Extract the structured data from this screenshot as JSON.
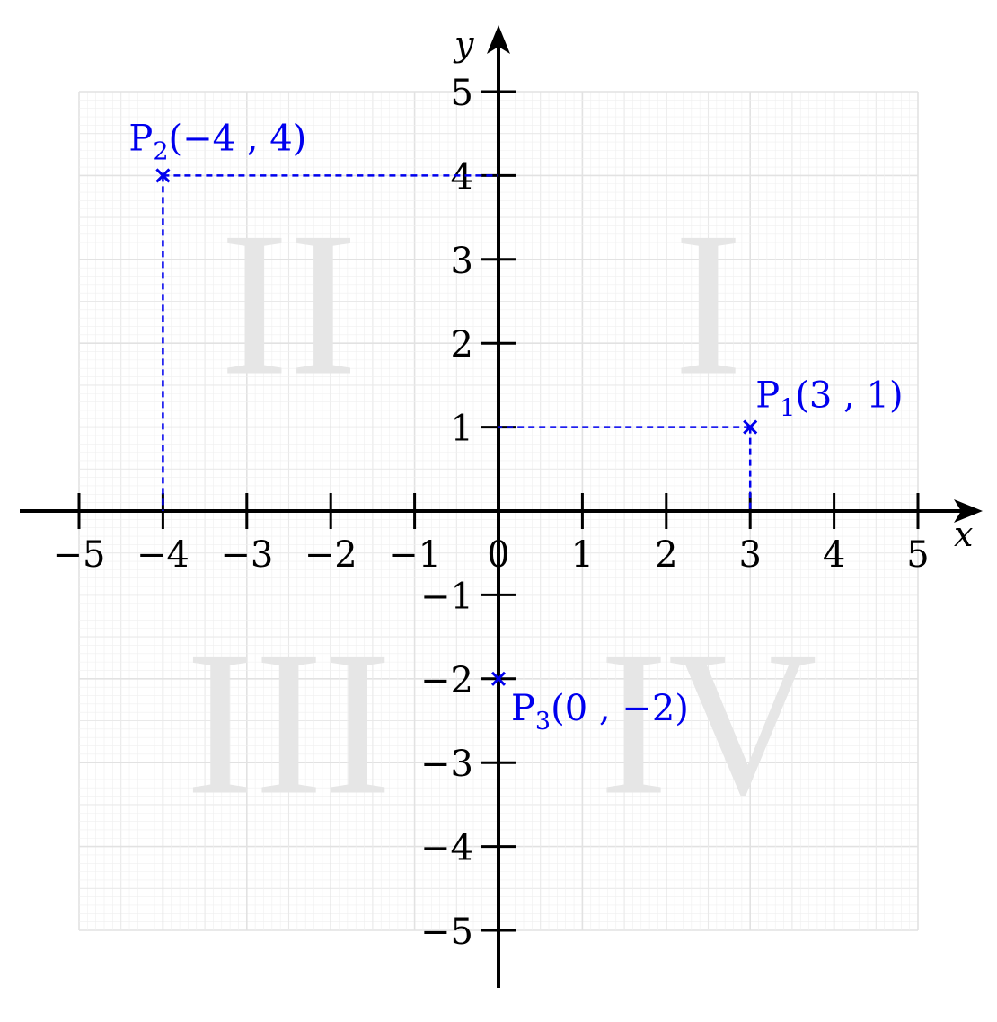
{
  "chart_data": {
    "type": "scatter",
    "xlabel": "x",
    "ylabel": "y",
    "xlim": [
      -5,
      5
    ],
    "ylim": [
      -5,
      5
    ],
    "x_ticks": [
      -5,
      -4,
      -3,
      -2,
      -1,
      0,
      1,
      2,
      3,
      4,
      5
    ],
    "y_ticks": [
      -5,
      -4,
      -3,
      -2,
      -1,
      1,
      2,
      3,
      4,
      5
    ],
    "x_tick_labels": [
      "−5",
      "−4",
      "−3",
      "−2",
      "−1",
      "0",
      "1",
      "2",
      "3",
      "4",
      "5"
    ],
    "y_tick_labels": [
      "−5",
      "−4",
      "−3",
      "−2",
      "−1",
      "1",
      "2",
      "3",
      "4",
      "5"
    ],
    "grid": true,
    "quadrant_labels": [
      {
        "text": "I",
        "x": 2.5,
        "y": 2.5
      },
      {
        "text": "II",
        "x": -2.5,
        "y": 2.5
      },
      {
        "text": "III",
        "x": -2.5,
        "y": -2.5
      },
      {
        "text": "IV",
        "x": 2.5,
        "y": -2.5
      }
    ],
    "points": [
      {
        "name": "P",
        "subscript": "1",
        "coords": "(3 , 1)",
        "x": 3,
        "y": 1
      },
      {
        "name": "P",
        "subscript": "2",
        "coords": "(−4 , 4)",
        "x": -4,
        "y": 4
      },
      {
        "name": "P",
        "subscript": "3",
        "coords": "(0 , −2)",
        "x": 0,
        "y": -2
      }
    ],
    "colors": {
      "points": "#0000ee",
      "axes": "#000000",
      "grid": "#e6e6e6",
      "quadrant_text": "#e6e6e6"
    }
  }
}
